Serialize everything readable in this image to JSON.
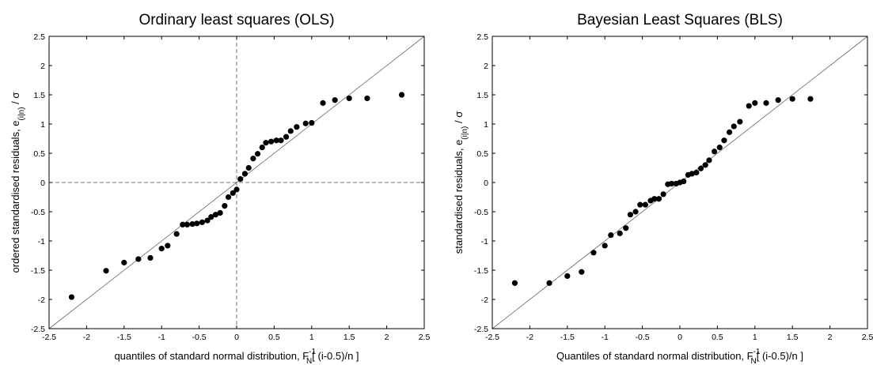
{
  "chart_data": [
    {
      "type": "scatter",
      "title": "Ordinary least squares (OLS)",
      "xlabel": {
        "text": "quantiles of standard normal distribution, F",
        "sup": "-1",
        "sub": "N",
        "suffix": "[ (i-0.5)/n ]"
      },
      "ylabel": {
        "text": "ordered standardised residuals, e",
        "sub": "(i|n)",
        "suffix": " / σ"
      },
      "xlim": [
        -2.5,
        2.5
      ],
      "ylim": [
        -2.5,
        2.5
      ],
      "xticks": [
        "-2.5",
        "-2",
        "-1.5",
        "-1",
        "-0.5",
        "0",
        "0.5",
        "1",
        "1.5",
        "2",
        "2.5"
      ],
      "yticks": [
        "2.5",
        "2",
        "1.5",
        "1",
        "0.5",
        "0",
        "-0.5",
        "-1",
        "-1.5",
        "-2",
        "-2.5"
      ],
      "reference_line": "y = x",
      "zero_lines": true,
      "x": [
        -2.2,
        -1.74,
        -1.5,
        -1.31,
        -1.15,
        -1.0,
        -0.92,
        -0.8,
        -0.72,
        -0.66,
        -0.59,
        -0.53,
        -0.46,
        -0.39,
        -0.34,
        -0.28,
        -0.22,
        -0.16,
        -0.11,
        -0.05,
        0.0,
        0.05,
        0.11,
        0.16,
        0.22,
        0.28,
        0.34,
        0.39,
        0.46,
        0.53,
        0.59,
        0.66,
        0.72,
        0.8,
        0.92,
        1.0,
        1.15,
        1.31,
        1.5,
        1.74,
        2.2
      ],
      "y": [
        -1.96,
        -1.51,
        -1.37,
        -1.31,
        -1.29,
        -1.13,
        -1.08,
        -0.88,
        -0.72,
        -0.72,
        -0.71,
        -0.7,
        -0.68,
        -0.65,
        -0.59,
        -0.55,
        -0.52,
        -0.4,
        -0.25,
        -0.18,
        -0.12,
        0.06,
        0.15,
        0.25,
        0.41,
        0.49,
        0.6,
        0.68,
        0.7,
        0.72,
        0.72,
        0.78,
        0.88,
        0.95,
        1.01,
        1.02,
        1.36,
        1.41,
        1.44,
        1.44,
        1.5
      ]
    },
    {
      "type": "scatter",
      "title": "Bayesian Least Squares (BLS)",
      "xlabel": {
        "text": "Quantiles of standard normal distribution, F",
        "sup": "-1",
        "sub": "N",
        "suffix": "[ (i-0.5)/n ]"
      },
      "ylabel": {
        "text": "standardised residuals, e",
        "sub": "(i|n)",
        "suffix": " / σ"
      },
      "xlim": [
        -2.5,
        2.5
      ],
      "ylim": [
        -2.5,
        2.5
      ],
      "xticks": [
        "-2.5",
        "-2",
        "-1.5",
        "-1",
        "-0.5",
        "0",
        "0.5",
        "1",
        "1.5",
        "2",
        "2.5"
      ],
      "yticks": [
        "2.5",
        "2",
        "1.5",
        "1",
        "0.5",
        "0",
        "-0.5",
        "-1",
        "-1.5",
        "-2",
        "-2.5"
      ],
      "reference_line": "y = x",
      "zero_lines": false,
      "x": [
        -2.2,
        -1.74,
        -1.5,
        -1.31,
        -1.15,
        -1.0,
        -0.92,
        -0.8,
        -0.72,
        -0.66,
        -0.59,
        -0.53,
        -0.46,
        -0.39,
        -0.34,
        -0.28,
        -0.22,
        -0.16,
        -0.11,
        -0.05,
        0.0,
        0.05,
        0.11,
        0.16,
        0.22,
        0.28,
        0.34,
        0.39,
        0.46,
        0.53,
        0.59,
        0.66,
        0.72,
        0.8,
        0.92,
        1.0,
        1.15,
        1.31,
        1.5,
        1.74
      ],
      "y": [
        -1.72,
        -1.72,
        -1.6,
        -1.53,
        -1.2,
        -1.08,
        -0.9,
        -0.87,
        -0.78,
        -0.55,
        -0.5,
        -0.38,
        -0.38,
        -0.31,
        -0.28,
        -0.28,
        -0.2,
        -0.03,
        -0.02,
        -0.02,
        0.0,
        0.02,
        0.13,
        0.15,
        0.17,
        0.24,
        0.3,
        0.38,
        0.53,
        0.6,
        0.72,
        0.86,
        0.96,
        1.04,
        1.31,
        1.36,
        1.36,
        1.41,
        1.43,
        1.43
      ]
    }
  ]
}
